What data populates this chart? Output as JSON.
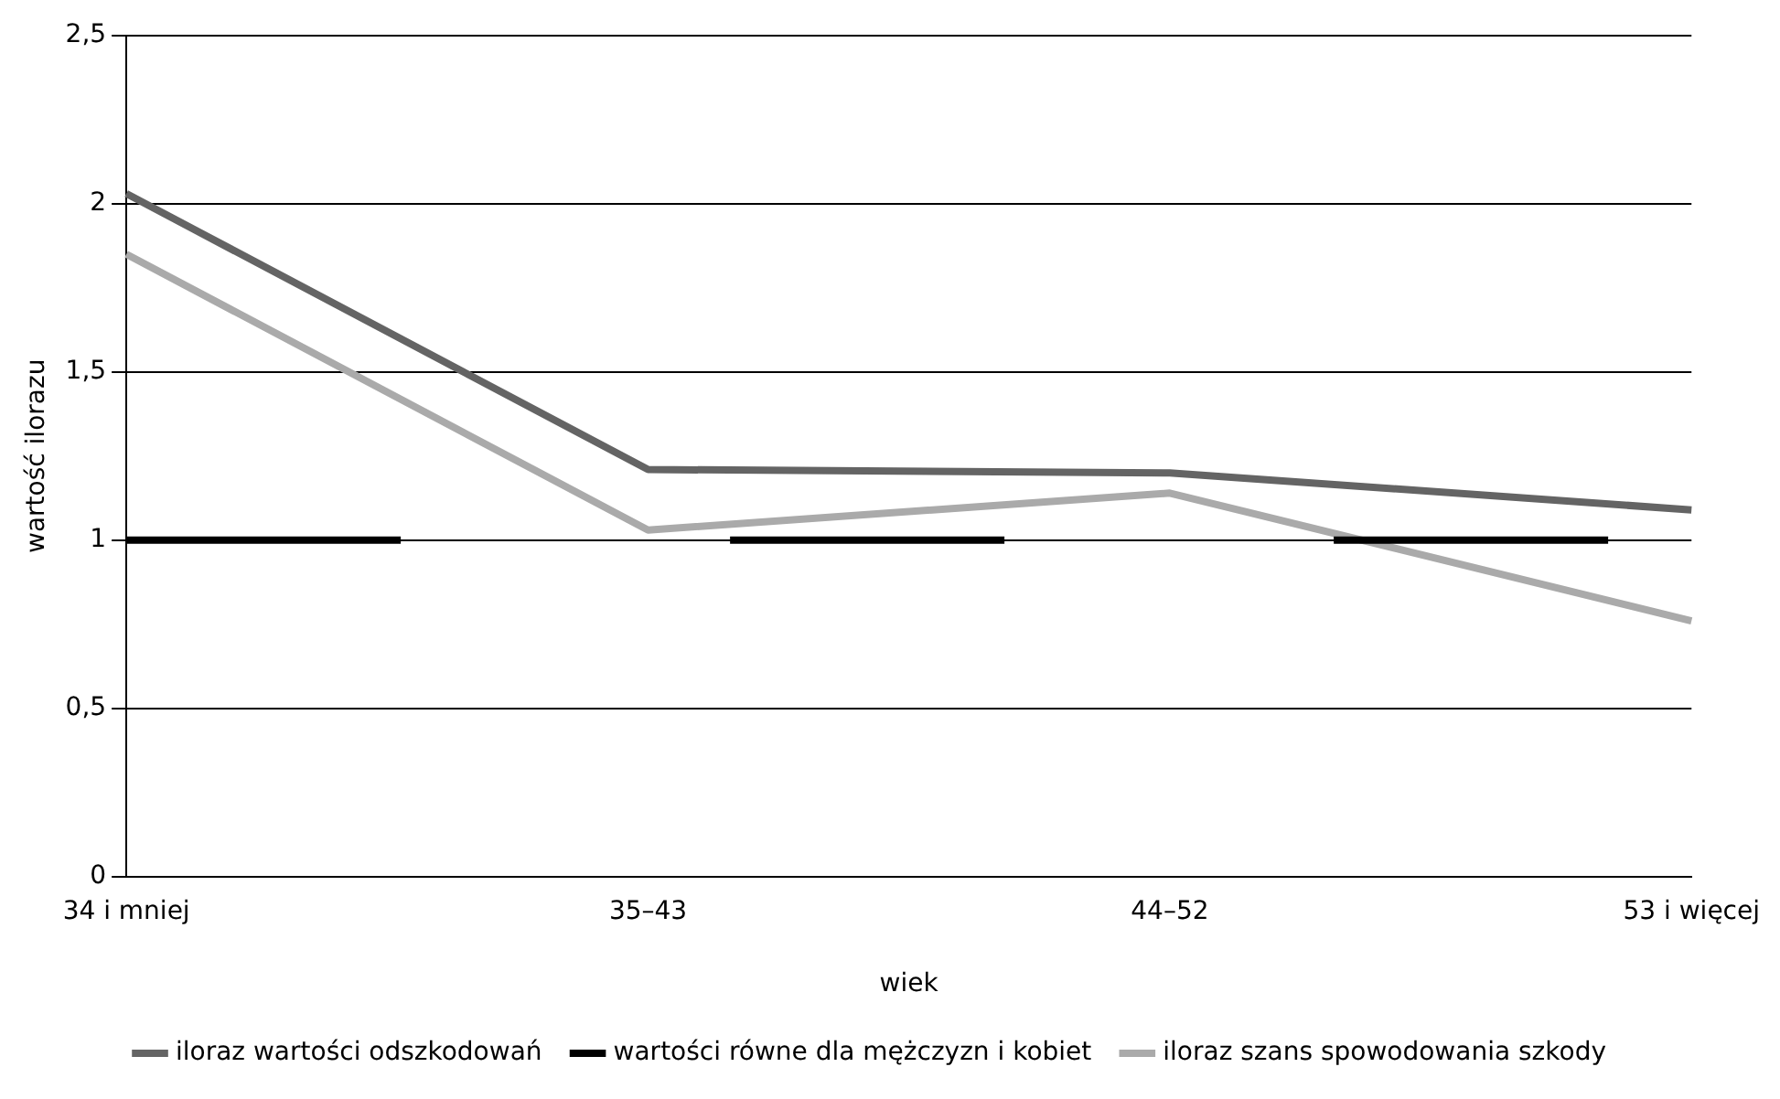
{
  "chart_data": {
    "type": "line",
    "xlabel": "wiek",
    "ylabel": "wartość ilorazu",
    "categories": [
      "34 i mniej",
      "35–43",
      "44–52",
      "53 i więcej"
    ],
    "series": [
      {
        "name": "iloraz wartości odszkodowań",
        "color": "#646464",
        "values": [
          2.03,
          1.21,
          1.2,
          1.09
        ]
      },
      {
        "name": "wartości równe dla mężczyzn i kobiet",
        "color": "#000000",
        "values": [
          1,
          1,
          1,
          1
        ],
        "line_style": "dashed"
      },
      {
        "name": "iloraz szans spowodowania szkody",
        "color": "#aaaaaa",
        "values": [
          1.85,
          1.03,
          1.14,
          0.76
        ]
      }
    ],
    "ylim": [
      0,
      2.5
    ],
    "yticks": [
      0,
      {
        "value": 0.5,
        "label": "0,5"
      },
      1,
      {
        "value": 1.5,
        "label": "1,5"
      },
      2,
      {
        "value": 2.5,
        "label": "2,5"
      }
    ],
    "grid": "y",
    "legend": "bottom",
    "marker": "none",
    "line_style": "solid"
  }
}
